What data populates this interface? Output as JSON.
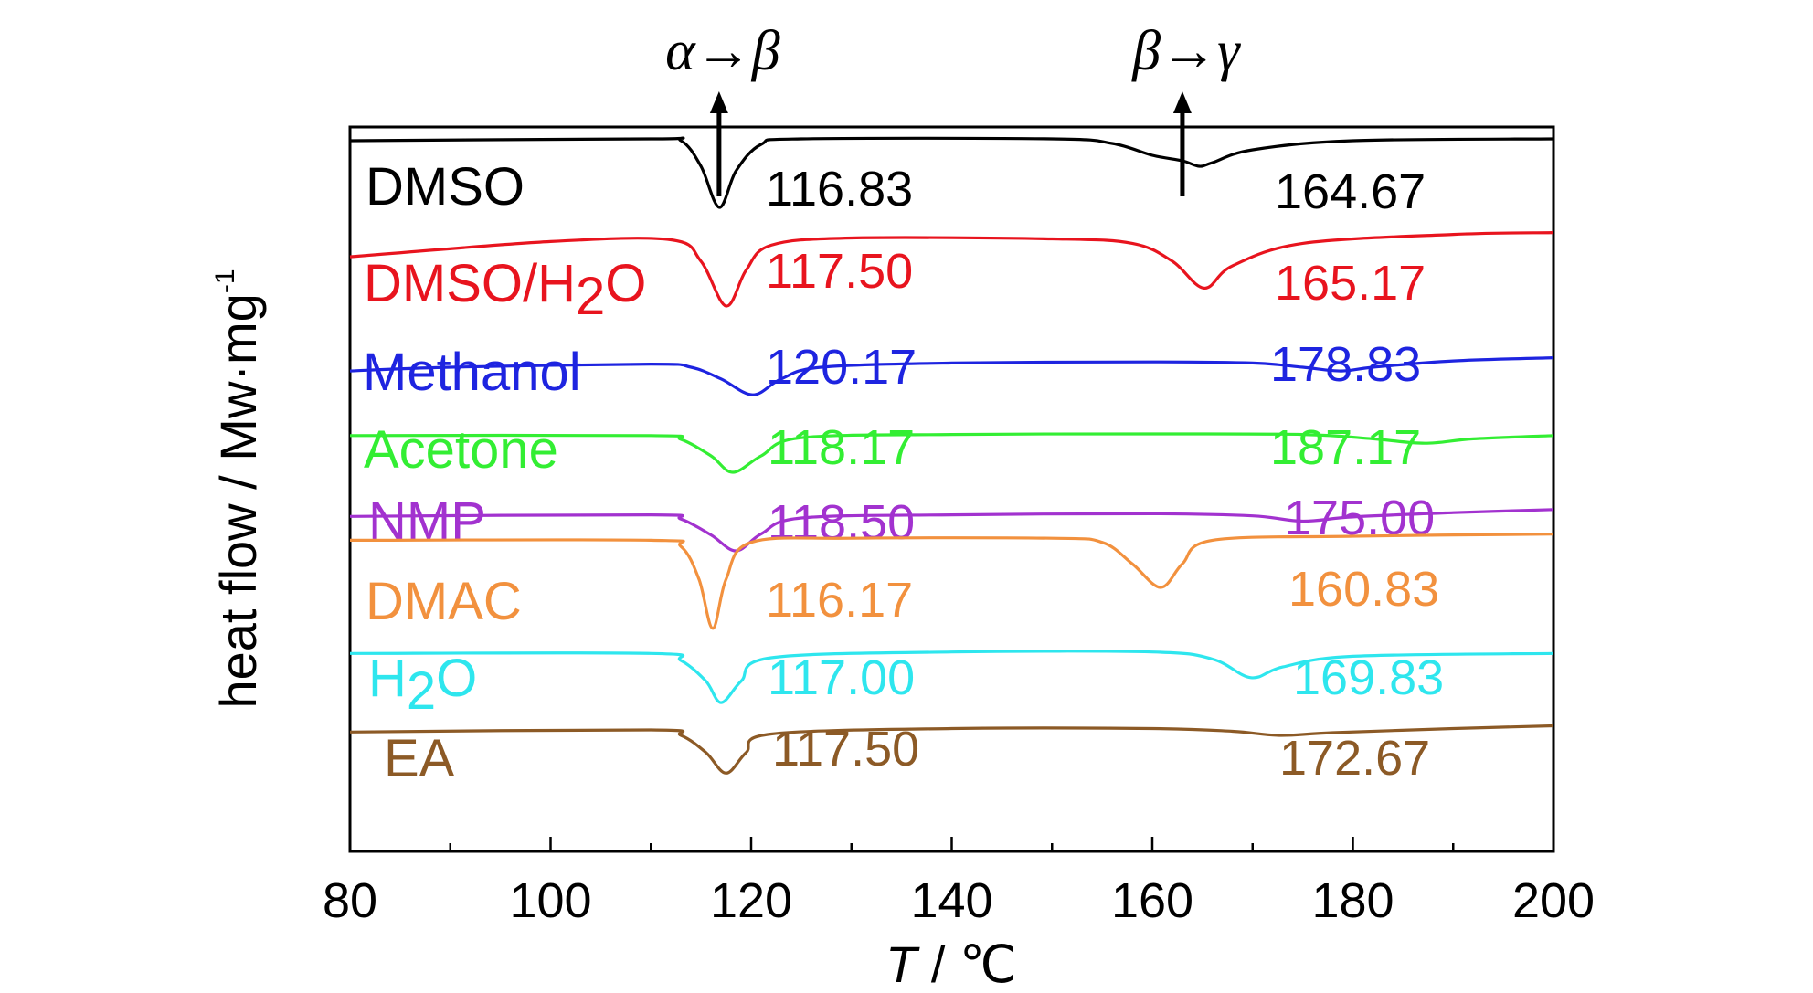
{
  "chart_data": {
    "type": "line",
    "title": "",
    "xlabel_var": "T",
    "xlabel_unit": " / ℃",
    "ylabel": "heat flow / Mw·mg",
    "ylabel_sup": "-1",
    "xlim": [
      80,
      200
    ],
    "xticks": [
      "80",
      "100",
      "120",
      "140",
      "160",
      "180",
      "200"
    ],
    "grid": false,
    "transitions": [
      {
        "label": "α→β",
        "x": 116.8
      },
      {
        "label": "β→γ",
        "x": 163.0
      }
    ],
    "series": [
      {
        "name": "DMSO",
        "name_sub": "",
        "color": "#000000",
        "peak1": 116.83,
        "peak1_label": "116.83",
        "peak2": 164.67,
        "peak2_label": "164.67",
        "points": [
          [
            80,
            0.78
          ],
          [
            110,
            0.8
          ],
          [
            113,
            0.78
          ],
          [
            115,
            0.5
          ],
          [
            116.83,
            0.05
          ],
          [
            118.5,
            0.45
          ],
          [
            121,
            0.74
          ],
          [
            125,
            0.8
          ],
          [
            150,
            0.8
          ],
          [
            156,
            0.75
          ],
          [
            160,
            0.62
          ],
          [
            163,
            0.56
          ],
          [
            164.67,
            0.5
          ],
          [
            166,
            0.54
          ],
          [
            170,
            0.68
          ],
          [
            180,
            0.78
          ],
          [
            200,
            0.8
          ]
        ]
      },
      {
        "name": "DMSO/H",
        "name_sub": "2",
        "name_tail": "O",
        "color": "#e8141e",
        "peak1": 117.5,
        "peak1_label": "117.50",
        "peak2": 165.17,
        "peak2_label": "165.17",
        "points": [
          [
            80,
            0.55
          ],
          [
            100,
            0.72
          ],
          [
            112,
            0.74
          ],
          [
            115,
            0.5
          ],
          [
            117.5,
            0.0
          ],
          [
            119.5,
            0.4
          ],
          [
            122,
            0.68
          ],
          [
            130,
            0.76
          ],
          [
            150,
            0.75
          ],
          [
            158,
            0.7
          ],
          [
            162,
            0.5
          ],
          [
            165.17,
            0.2
          ],
          [
            168,
            0.45
          ],
          [
            175,
            0.7
          ],
          [
            190,
            0.8
          ],
          [
            200,
            0.82
          ]
        ]
      },
      {
        "name": "Methanol",
        "name_sub": "",
        "color": "#1e24e0",
        "peak1": 120.17,
        "peak1_label": "120.17",
        "peak2": 178.83,
        "peak2_label": "178.83",
        "points": [
          [
            80,
            0.55
          ],
          [
            90,
            0.62
          ],
          [
            110,
            0.68
          ],
          [
            114,
            0.62
          ],
          [
            117,
            0.4
          ],
          [
            120.17,
            0.1
          ],
          [
            123,
            0.4
          ],
          [
            127,
            0.62
          ],
          [
            140,
            0.7
          ],
          [
            160,
            0.72
          ],
          [
            170,
            0.7
          ],
          [
            175,
            0.62
          ],
          [
            178.83,
            0.55
          ],
          [
            182,
            0.62
          ],
          [
            190,
            0.74
          ],
          [
            200,
            0.8
          ]
        ]
      },
      {
        "name": "Acetone",
        "name_sub": "",
        "color": "#33ee33",
        "peak1": 118.17,
        "peak1_label": "118.17",
        "peak2": 187.17,
        "peak2_label": "187.17",
        "points": [
          [
            80,
            0.72
          ],
          [
            110,
            0.72
          ],
          [
            113,
            0.65
          ],
          [
            116,
            0.35
          ],
          [
            118.17,
            0.05
          ],
          [
            121,
            0.35
          ],
          [
            125,
            0.68
          ],
          [
            140,
            0.74
          ],
          [
            160,
            0.75
          ],
          [
            175,
            0.74
          ],
          [
            182,
            0.66
          ],
          [
            187.17,
            0.58
          ],
          [
            192,
            0.66
          ],
          [
            200,
            0.72
          ]
        ]
      },
      {
        "name": "NMP",
        "name_sub": "",
        "color": "#a232cf",
        "peak1": 118.5,
        "peak1_label": "118.50",
        "peak2": 175.0,
        "peak2_label": "175.00",
        "points": [
          [
            80,
            0.65
          ],
          [
            110,
            0.68
          ],
          [
            113,
            0.6
          ],
          [
            116,
            0.3
          ],
          [
            118.5,
            0.0
          ],
          [
            121,
            0.32
          ],
          [
            125,
            0.62
          ],
          [
            140,
            0.68
          ],
          [
            160,
            0.7
          ],
          [
            170,
            0.66
          ],
          [
            175,
            0.56
          ],
          [
            180,
            0.64
          ],
          [
            190,
            0.72
          ],
          [
            200,
            0.78
          ]
        ]
      },
      {
        "name": "DMAC",
        "name_sub": "",
        "color": "#f2913e",
        "peak1": 116.17,
        "peak1_label": "116.17",
        "peak2": 160.83,
        "peak2_label": "160.83",
        "points": [
          [
            80,
            0.88
          ],
          [
            110,
            0.88
          ],
          [
            113,
            0.82
          ],
          [
            114.8,
            0.5
          ],
          [
            116.17,
            0.02
          ],
          [
            117.5,
            0.5
          ],
          [
            120,
            0.86
          ],
          [
            130,
            0.9
          ],
          [
            150,
            0.9
          ],
          [
            155,
            0.86
          ],
          [
            158,
            0.65
          ],
          [
            160.83,
            0.42
          ],
          [
            163,
            0.65
          ],
          [
            166,
            0.88
          ],
          [
            180,
            0.92
          ],
          [
            200,
            0.94
          ]
        ]
      },
      {
        "name": "H",
        "name_sub": "2",
        "name_tail": "O",
        "color": "#2ee6ee",
        "peak1": 117.0,
        "peak1_label": "117.00",
        "peak2": 169.83,
        "peak2_label": "169.83",
        "points": [
          [
            80,
            0.74
          ],
          [
            110,
            0.74
          ],
          [
            113,
            0.64
          ],
          [
            115.5,
            0.35
          ],
          [
            117,
            0.05
          ],
          [
            119,
            0.35
          ],
          [
            122,
            0.68
          ],
          [
            140,
            0.76
          ],
          [
            160,
            0.76
          ],
          [
            166,
            0.66
          ],
          [
            169.83,
            0.4
          ],
          [
            173,
            0.55
          ],
          [
            180,
            0.7
          ],
          [
            200,
            0.74
          ]
        ]
      },
      {
        "name": "EA",
        "name_sub": "",
        "color": "#8c5a26",
        "peak1": 117.5,
        "peak1_label": "117.50",
        "peak2": 172.67,
        "peak2_label": "172.67",
        "points": [
          [
            80,
            0.65
          ],
          [
            110,
            0.68
          ],
          [
            113,
            0.6
          ],
          [
            115.5,
            0.35
          ],
          [
            117.5,
            0.05
          ],
          [
            119.5,
            0.35
          ],
          [
            122,
            0.62
          ],
          [
            140,
            0.7
          ],
          [
            160,
            0.7
          ],
          [
            168,
            0.66
          ],
          [
            172.67,
            0.6
          ],
          [
            178,
            0.64
          ],
          [
            190,
            0.7
          ],
          [
            200,
            0.74
          ]
        ]
      }
    ]
  }
}
